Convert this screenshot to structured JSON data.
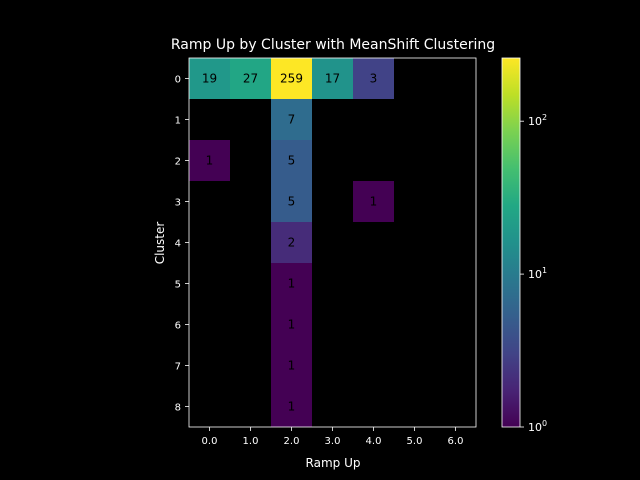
{
  "chart_data": {
    "type": "heatmap",
    "title": "Ramp Up by Cluster with MeanShift Clustering",
    "xlabel": "Ramp Up",
    "ylabel": "Cluster",
    "x_categories": [
      "0.0",
      "1.0",
      "2.0",
      "3.0",
      "4.0",
      "5.0",
      "6.0"
    ],
    "y_categories": [
      "0",
      "1",
      "2",
      "3",
      "4",
      "5",
      "6",
      "7",
      "8"
    ],
    "values": [
      [
        19,
        27,
        259,
        17,
        3,
        null,
        null
      ],
      [
        null,
        null,
        7,
        null,
        null,
        null,
        null
      ],
      [
        1,
        null,
        5,
        null,
        null,
        null,
        null
      ],
      [
        null,
        null,
        5,
        null,
        1,
        null,
        null
      ],
      [
        null,
        null,
        2,
        null,
        null,
        null,
        null
      ],
      [
        null,
        null,
        1,
        null,
        null,
        null,
        null
      ],
      [
        null,
        null,
        1,
        null,
        null,
        null,
        null
      ],
      [
        null,
        null,
        1,
        null,
        null,
        null,
        null
      ],
      [
        null,
        null,
        1,
        null,
        null,
        null,
        null
      ]
    ],
    "colormap": "viridis",
    "color_scale": "log",
    "color_range": [
      1,
      259
    ],
    "colorbar_ticks": [
      {
        "base": "10",
        "exp": "0",
        "value": 1
      },
      {
        "base": "10",
        "exp": "1",
        "value": 10
      },
      {
        "base": "10",
        "exp": "2",
        "value": 100
      }
    ],
    "background": "#000000",
    "grid": false
  }
}
